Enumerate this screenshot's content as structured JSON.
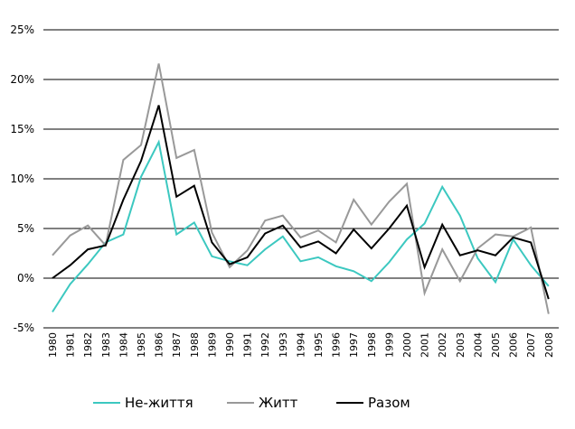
{
  "chart_data": {
    "type": "line",
    "x": [
      "1980",
      "1981",
      "1982",
      "1983",
      "1984",
      "1985",
      "1986",
      "1987",
      "1988",
      "1989",
      "1990",
      "1991",
      "1992",
      "1993",
      "1994",
      "1995",
      "1996",
      "1997",
      "1998",
      "1999",
      "2000",
      "2001",
      "2002",
      "2003",
      "2004",
      "2005",
      "2006",
      "2007",
      "2008"
    ],
    "y_ticks": [
      "-5%",
      "0%",
      "5%",
      "10%",
      "15%",
      "20%",
      "25%"
    ],
    "ylim": [
      -5,
      25
    ],
    "grid": "horizontal",
    "legend_position": "bottom",
    "series": [
      {
        "name": "Не-життя",
        "color": "#3cc8c0",
        "values": [
          -3.4,
          -0.6,
          1.4,
          3.6,
          4.4,
          10.2,
          13.7,
          4.4,
          5.6,
          2.2,
          1.7,
          1.3,
          2.9,
          4.2,
          1.7,
          2.1,
          1.2,
          0.7,
          -0.3,
          1.6,
          3.9,
          5.5,
          9.2,
          6.3,
          2.0,
          -0.4,
          3.9,
          1.3,
          -0.8
        ]
      },
      {
        "name": "Житт",
        "color": "#999999",
        "values": [
          2.3,
          4.3,
          5.3,
          3.3,
          11.9,
          13.4,
          21.6,
          12.1,
          12.9,
          4.6,
          1.1,
          2.8,
          5.8,
          6.3,
          4.1,
          4.8,
          3.6,
          7.9,
          5.4,
          7.7,
          9.5,
          -1.5,
          2.9,
          -0.3,
          3.0,
          4.4,
          4.2,
          5.1,
          -3.6
        ]
      },
      {
        "name": "Разом",
        "color": "#000000",
        "values": [
          0.0,
          1.3,
          2.9,
          3.3,
          7.9,
          11.8,
          17.4,
          8.2,
          9.3,
          3.6,
          1.4,
          2.1,
          4.5,
          5.3,
          3.1,
          3.7,
          2.5,
          4.9,
          3.0,
          5.0,
          7.3,
          1.1,
          5.4,
          2.3,
          2.8,
          2.3,
          4.1,
          3.6,
          -2.1
        ]
      }
    ]
  }
}
